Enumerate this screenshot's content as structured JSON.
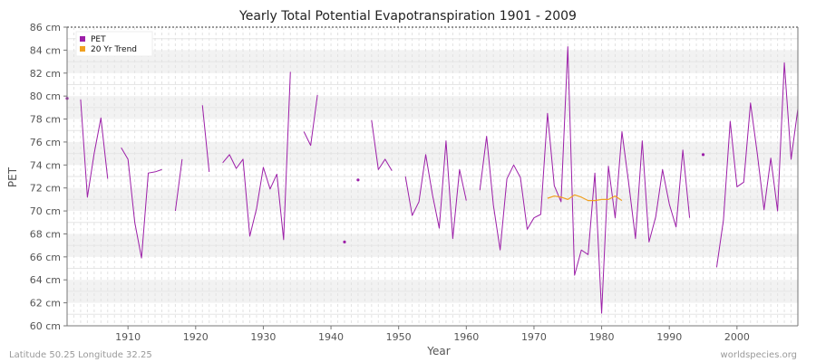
{
  "chart_data": {
    "type": "line",
    "title": "Yearly Total Potential Evapotranspiration 1901 - 2009",
    "xlabel": "Year",
    "ylabel": "PET",
    "xlim": [
      1901,
      2009
    ],
    "ylim": [
      60,
      86
    ],
    "x_ticks": [
      1910,
      1920,
      1930,
      1940,
      1950,
      1960,
      1970,
      1980,
      1990,
      2000
    ],
    "x_tick_labels": [
      "1910",
      "1920",
      "1930",
      "1940",
      "1950",
      "1960",
      "1970",
      "1980",
      "1990",
      "2000"
    ],
    "y_ticks": [
      60,
      62,
      64,
      66,
      68,
      70,
      72,
      74,
      76,
      78,
      80,
      82,
      84,
      86
    ],
    "y_tick_labels": [
      "60 cm",
      "62 cm",
      "64 cm",
      "66 cm",
      "68 cm",
      "70 cm",
      "72 cm",
      "74 cm",
      "76 cm",
      "78 cm",
      "80 cm",
      "82 cm",
      "84 cm",
      "86 cm"
    ],
    "grid": true,
    "legend_position": "top-left",
    "colors": {
      "pet": "#9c1fa8",
      "trend": "#f0a020",
      "band": "#f2f2f2",
      "grid": "#dddddd"
    },
    "series": [
      {
        "name": "PET",
        "color": "#9c1fa8",
        "points": [
          [
            1901,
            79.8
          ],
          [
            1902,
            null
          ],
          [
            1903,
            79.7
          ],
          [
            1904,
            71.2
          ],
          [
            1905,
            75.0
          ],
          [
            1906,
            78.1
          ],
          [
            1907,
            72.8
          ],
          [
            1908,
            null
          ],
          [
            1909,
            75.5
          ],
          [
            1910,
            74.5
          ],
          [
            1911,
            69.0
          ],
          [
            1912,
            65.9
          ],
          [
            1913,
            73.3
          ],
          [
            1914,
            73.4
          ],
          [
            1915,
            73.6
          ],
          [
            1916,
            null
          ],
          [
            1917,
            70.0
          ],
          [
            1918,
            74.5
          ],
          [
            1919,
            null
          ],
          [
            1920,
            null
          ],
          [
            1921,
            79.2
          ],
          [
            1922,
            73.4
          ],
          [
            1923,
            null
          ],
          [
            1924,
            74.2
          ],
          [
            1925,
            74.9
          ],
          [
            1926,
            73.7
          ],
          [
            1927,
            74.5
          ],
          [
            1928,
            67.8
          ],
          [
            1929,
            70.2
          ],
          [
            1930,
            73.8
          ],
          [
            1931,
            71.9
          ],
          [
            1932,
            73.2
          ],
          [
            1933,
            67.5
          ],
          [
            1934,
            82.1
          ],
          [
            1935,
            null
          ],
          [
            1936,
            76.9
          ],
          [
            1937,
            75.7
          ],
          [
            1938,
            80.1
          ],
          [
            1939,
            null
          ],
          [
            1940,
            null
          ],
          [
            1941,
            null
          ],
          [
            1942,
            67.3
          ],
          [
            1943,
            null
          ],
          [
            1944,
            72.7
          ],
          [
            1945,
            null
          ],
          [
            1946,
            77.9
          ],
          [
            1947,
            73.6
          ],
          [
            1948,
            74.5
          ],
          [
            1949,
            73.5
          ],
          [
            1950,
            null
          ],
          [
            1951,
            73.0
          ],
          [
            1952,
            69.6
          ],
          [
            1953,
            70.8
          ],
          [
            1954,
            74.9
          ],
          [
            1955,
            71.4
          ],
          [
            1956,
            68.5
          ],
          [
            1957,
            76.1
          ],
          [
            1958,
            67.6
          ],
          [
            1959,
            73.6
          ],
          [
            1960,
            70.9
          ],
          [
            1961,
            null
          ],
          [
            1962,
            71.8
          ],
          [
            1963,
            76.5
          ],
          [
            1964,
            70.5
          ],
          [
            1965,
            66.6
          ],
          [
            1966,
            72.8
          ],
          [
            1967,
            74.0
          ],
          [
            1968,
            72.9
          ],
          [
            1969,
            68.4
          ],
          [
            1970,
            69.4
          ],
          [
            1971,
            69.7
          ],
          [
            1972,
            78.5
          ],
          [
            1973,
            72.2
          ],
          [
            1974,
            70.8
          ],
          [
            1975,
            84.3
          ],
          [
            1976,
            64.4
          ],
          [
            1977,
            66.6
          ],
          [
            1978,
            66.2
          ],
          [
            1979,
            73.3
          ],
          [
            1980,
            61.1
          ],
          [
            1981,
            73.9
          ],
          [
            1982,
            69.4
          ],
          [
            1983,
            76.9
          ],
          [
            1984,
            72.4
          ],
          [
            1985,
            67.6
          ],
          [
            1986,
            76.1
          ],
          [
            1987,
            67.3
          ],
          [
            1988,
            69.5
          ],
          [
            1989,
            73.6
          ],
          [
            1990,
            70.6
          ],
          [
            1991,
            68.6
          ],
          [
            1992,
            75.3
          ],
          [
            1993,
            69.4
          ],
          [
            1994,
            null
          ],
          [
            1995,
            74.9
          ],
          [
            1996,
            null
          ],
          [
            1997,
            65.1
          ],
          [
            1998,
            69.2
          ],
          [
            1999,
            77.8
          ],
          [
            2000,
            72.1
          ],
          [
            2001,
            72.5
          ],
          [
            2002,
            79.4
          ],
          [
            2003,
            75.0
          ],
          [
            2004,
            70.1
          ],
          [
            2005,
            74.6
          ],
          [
            2006,
            70.0
          ],
          [
            2007,
            82.9
          ],
          [
            2008,
            74.5
          ],
          [
            2009,
            78.9
          ]
        ]
      },
      {
        "name": "20 Yr Trend",
        "color": "#f0a020",
        "points": [
          [
            1972,
            71.1
          ],
          [
            1973,
            71.3
          ],
          [
            1974,
            71.2
          ],
          [
            1975,
            71.0
          ],
          [
            1976,
            71.4
          ],
          [
            1977,
            71.2
          ],
          [
            1978,
            70.9
          ],
          [
            1979,
            70.9
          ],
          [
            1980,
            71.0
          ],
          [
            1981,
            71.0
          ],
          [
            1982,
            71.3
          ],
          [
            1983,
            70.9
          ]
        ]
      }
    ]
  },
  "footer": {
    "location": "Latitude 50.25 Longitude 32.25",
    "credit": "worldspecies.org"
  }
}
